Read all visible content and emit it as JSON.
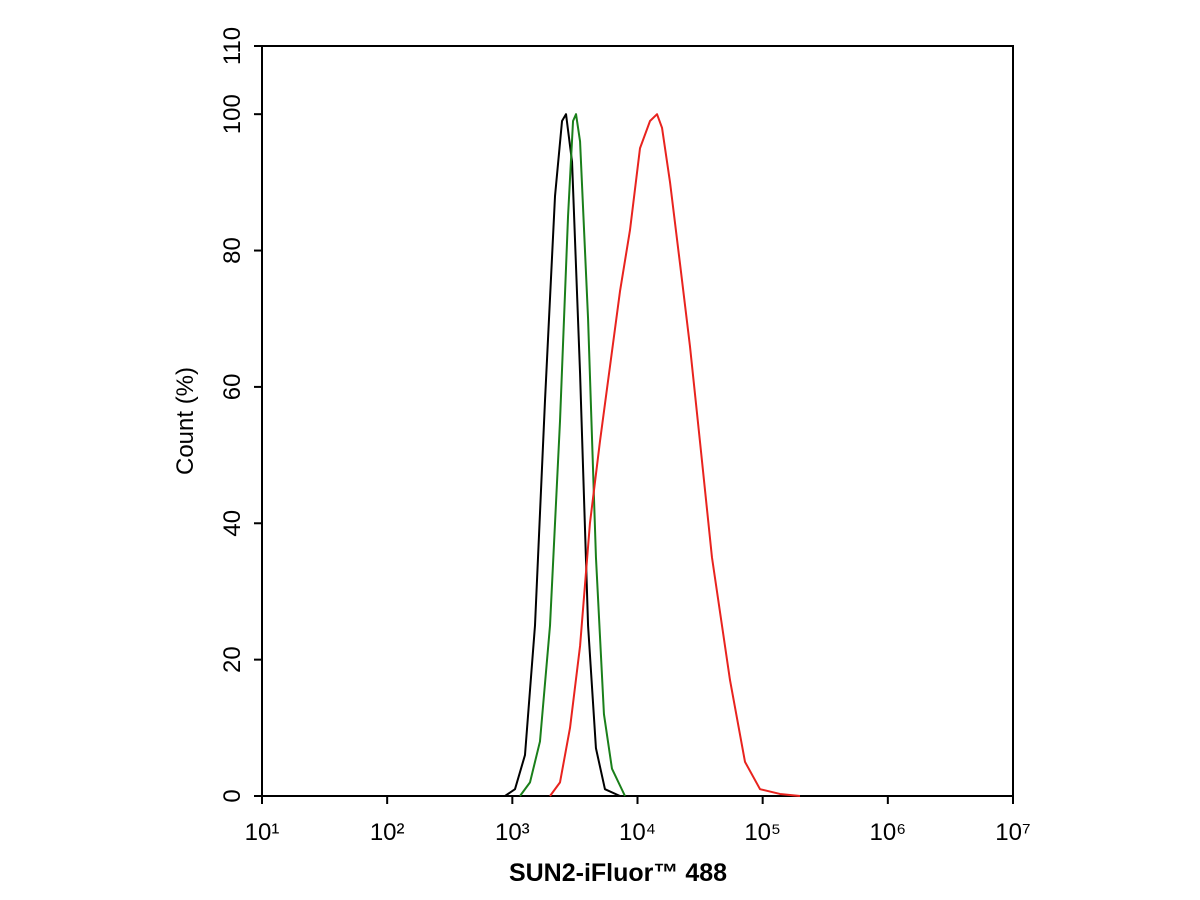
{
  "chart_data": {
    "type": "line",
    "xlabel": "SUN2-iFluor™ 488",
    "ylabel": "Count  (%)",
    "xscale": "log",
    "xlim": [
      10,
      10000000
    ],
    "xticks": [
      {
        "value": 10,
        "label": "10¹"
      },
      {
        "value": 100,
        "label": "10²"
      },
      {
        "value": 1000,
        "label": "10³"
      },
      {
        "value": 10000,
        "label": "10⁴"
      },
      {
        "value": 100000,
        "label": "10⁵"
      },
      {
        "value": 1000000,
        "label": "10⁶"
      },
      {
        "value": 10000000,
        "label": "10⁷"
      }
    ],
    "ylim": [
      0,
      110
    ],
    "yticks": [
      0,
      20,
      40,
      60,
      80,
      100,
      110
    ],
    "grid": false,
    "series": [
      {
        "color": "#000000",
        "x": [
          874,
          1050,
          1262,
          1517,
          1824,
          2193,
          2495,
          2685,
          3000,
          3476,
          4027,
          4656,
          5495,
          7244
        ],
        "values": [
          0,
          1,
          6,
          25,
          58,
          88,
          99,
          100,
          93,
          62,
          25,
          7,
          1,
          0
        ]
      },
      {
        "color": "#1a7f1a",
        "x": [
          1151,
          1384,
          1663,
          2000,
          2404,
          2786,
          3055,
          3228,
          3476,
          4027,
          4656,
          5395,
          6252,
          7943
        ],
        "values": [
          0,
          2,
          8,
          25,
          55,
          85,
          99,
          100,
          96,
          70,
          35,
          12,
          4,
          0
        ]
      },
      {
        "color": "#e8231e",
        "x": [
          2000,
          2404,
          2890,
          3476,
          4169,
          5012,
          6026,
          7244,
          8710,
          10471,
          12589,
          14322,
          15704,
          18197,
          21878,
          26242,
          31550,
          39355,
          54828,
          72277,
          95280,
          137400,
          198600
        ],
        "values": [
          0,
          2,
          10,
          22,
          40,
          52,
          63,
          74,
          83,
          95,
          99,
          100,
          98,
          90,
          78,
          66,
          52,
          35,
          17,
          5,
          1,
          0.3,
          0
        ]
      }
    ]
  }
}
